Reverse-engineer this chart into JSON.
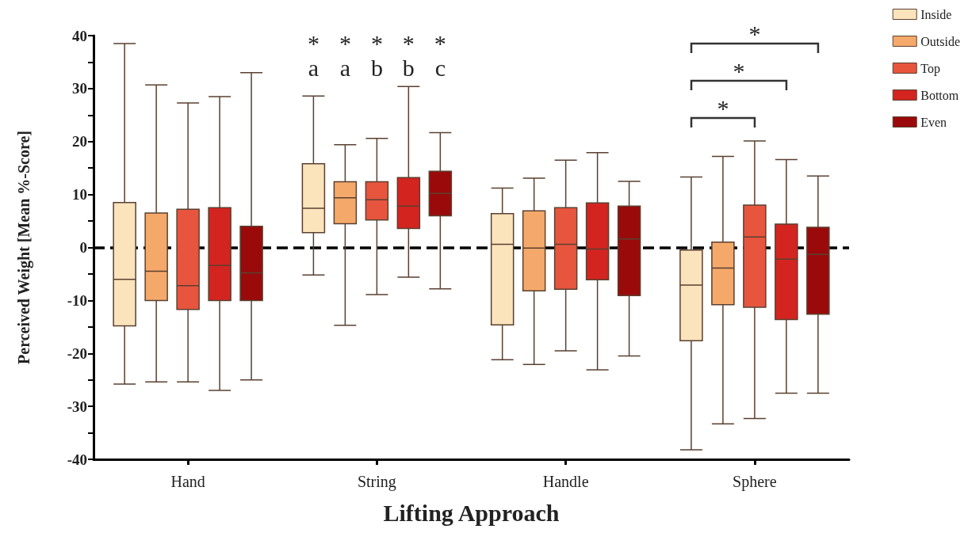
{
  "chart_data": {
    "type": "box",
    "xlabel": "Lifting Approach",
    "ylabel": "Perceived Weight [Mean %-Score]",
    "categories": [
      "Hand",
      "String",
      "Handle",
      "Sphere"
    ],
    "ylim": [
      -40,
      40
    ],
    "yticks": [
      -40,
      -30,
      -20,
      -10,
      0,
      10,
      20,
      30,
      40
    ],
    "legend": "top right",
    "ref_lines": [
      {
        "axis": "y",
        "value": 0,
        "color": "#000000",
        "line_style": "dashed"
      }
    ],
    "annotations": [
      "*",
      "*",
      "*",
      "*",
      "*",
      "a",
      "a",
      "b",
      "b",
      "c",
      "*",
      "*",
      "*"
    ],
    "series": [
      {
        "name": "Inside",
        "color": "#fbe3bc",
        "boxes": [
          {
            "low": -25.8,
            "q1": -14.8,
            "median": -6,
            "q3": 8.5,
            "high": 38.5
          },
          {
            "low": -5.2,
            "q1": 2.8,
            "median": 7.4,
            "q3": 15.8,
            "high": 28.6
          },
          {
            "low": -21.2,
            "q1": -14.6,
            "median": 0.6,
            "q3": 6.4,
            "high": 11.2
          },
          {
            "low": -38.2,
            "q1": -17.6,
            "median": -7.1,
            "q3": -0.5,
            "high": 13.3
          }
        ]
      },
      {
        "name": "Outside",
        "color": "#f4a96a",
        "boxes": [
          {
            "low": -25.4,
            "q1": -10,
            "median": -4.5,
            "q3": 6.5,
            "high": 30.7
          },
          {
            "low": -14.7,
            "q1": 4.5,
            "median": 9.4,
            "q3": 12.4,
            "high": 19.4
          },
          {
            "low": -22.1,
            "q1": -8.2,
            "median": -0.1,
            "q3": 6.9,
            "high": 13.1
          },
          {
            "low": -33.3,
            "q1": -10.8,
            "median": -3.9,
            "q3": 1,
            "high": 17.2
          }
        ]
      },
      {
        "name": "Top",
        "color": "#e8553e",
        "boxes": [
          {
            "low": -25.4,
            "q1": -11.7,
            "median": -7.2,
            "q3": 7.2,
            "high": 27.3
          },
          {
            "low": -8.9,
            "q1": 5.2,
            "median": 9,
            "q3": 12.4,
            "high": 20.6
          },
          {
            "low": -19.5,
            "q1": -7.9,
            "median": 0.6,
            "q3": 7.5,
            "high": 16.5
          },
          {
            "low": -32.3,
            "q1": -11.3,
            "median": 2,
            "q3": 8,
            "high": 20.1
          }
        ]
      },
      {
        "name": "Bottom",
        "color": "#d42420",
        "boxes": [
          {
            "low": -27,
            "q1": -10,
            "median": -3.4,
            "q3": 7.5,
            "high": 28.5
          },
          {
            "low": -5.6,
            "q1": 3.6,
            "median": 7.8,
            "q3": 13.2,
            "high": 30.4
          },
          {
            "low": -23.1,
            "q1": -6.1,
            "median": -0.3,
            "q3": 8.4,
            "high": 17.9
          },
          {
            "low": -27.5,
            "q1": -13.6,
            "median": -2.2,
            "q3": 4.4,
            "high": 16.6
          }
        ]
      },
      {
        "name": "Even",
        "color": "#9a0a0a",
        "boxes": [
          {
            "low": -25,
            "q1": -10,
            "median": -4.8,
            "q3": 4,
            "high": 33
          },
          {
            "low": -7.8,
            "q1": 6,
            "median": 10.2,
            "q3": 14.4,
            "high": 21.7
          },
          {
            "low": -20.5,
            "q1": -9.1,
            "median": 1.6,
            "q3": 7.8,
            "high": 12.5
          },
          {
            "low": -27.5,
            "q1": -12.6,
            "median": -1.3,
            "q3": 3.8,
            "high": 13.5
          }
        ]
      }
    ]
  }
}
